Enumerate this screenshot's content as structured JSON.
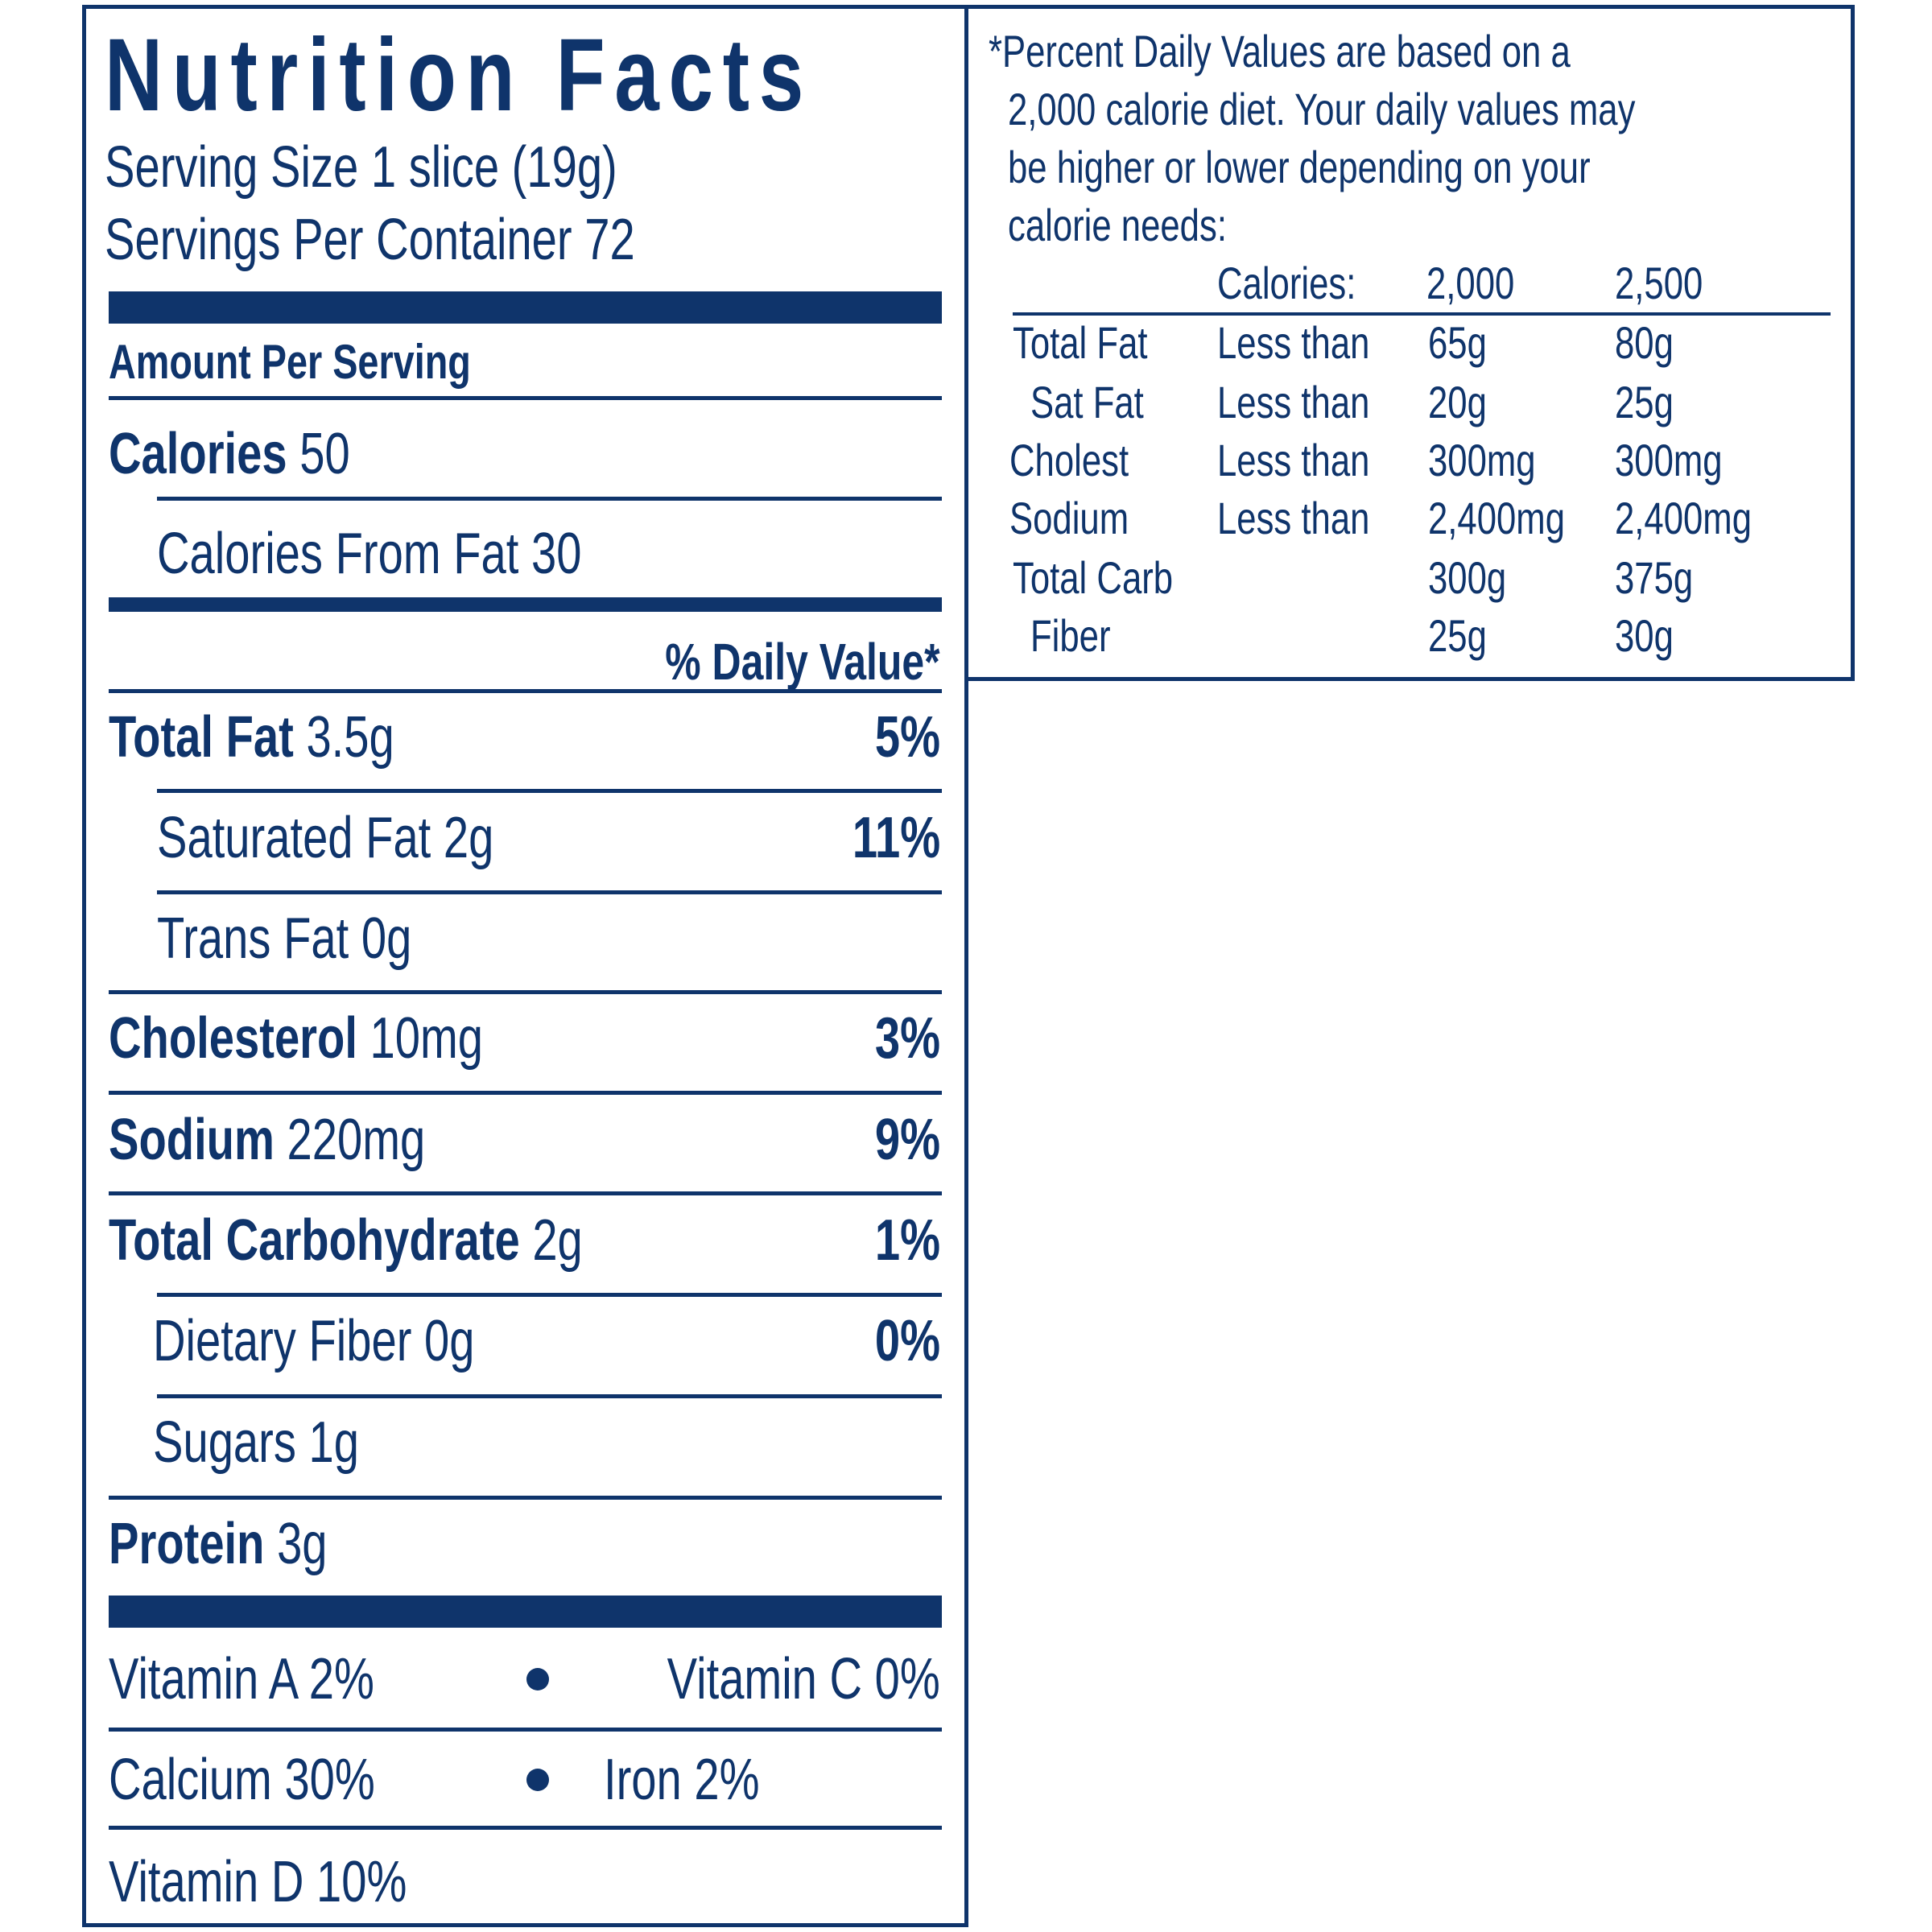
{
  "title": "Nutrition Facts",
  "serving_size": "Serving Size 1 slice (19g)",
  "servings_per_container": "Servings Per Container 72",
  "amount_per_serving": "Amount Per Serving",
  "calories": {
    "label": "Calories",
    "value": "50"
  },
  "calories_from_fat": "Calories From Fat 30",
  "daily_value_header": "% Daily Value*",
  "nutrients": [
    {
      "name": "Total Fat",
      "amount": "3.5g",
      "dv": "5%"
    },
    {
      "name": "Saturated Fat",
      "amount": "2g",
      "dv": "11%"
    },
    {
      "name": "Trans Fat",
      "amount": "0g",
      "dv": ""
    },
    {
      "name": "Cholesterol",
      "amount": "10mg",
      "dv": "3%"
    },
    {
      "name": "Sodium",
      "amount": "220mg",
      "dv": "9%"
    },
    {
      "name": "Total Carbohydrate",
      "amount": "2g",
      "dv": "1%"
    },
    {
      "name": "Dietary Fiber",
      "amount": "0g",
      "dv": "0%"
    },
    {
      "name": "Sugars",
      "amount": "1g",
      "dv": ""
    },
    {
      "name": "Protein",
      "amount": "3g",
      "dv": ""
    }
  ],
  "vitamins": {
    "vitamin_a": "Vitamin A 2%",
    "vitamin_c": "Vitamin C 0%",
    "calcium": "Calcium 30%",
    "iron": "Iron 2%",
    "vitamin_d": "Vitamin D 10%"
  },
  "footnote": {
    "lines": [
      "*Percent Daily Values are based on a",
      "2,000 calorie diet. Your daily values may",
      "be higher or lower depending on your",
      "calorie needs:"
    ],
    "header": [
      "Calories:",
      "2,000",
      "2,500"
    ],
    "rows": [
      {
        "nutrient": "Total Fat",
        "qualifier": "Less than",
        "v2000": "65g",
        "v2500": "80g"
      },
      {
        "nutrient": "Sat Fat",
        "qualifier": "Less than",
        "v2000": "20g",
        "v2500": "25g"
      },
      {
        "nutrient": "Cholest",
        "qualifier": "Less than",
        "v2000": "300mg",
        "v2500": "300mg"
      },
      {
        "nutrient": "Sodium",
        "qualifier": "Less than",
        "v2000": "2,400mg",
        "v2500": "2,400mg"
      },
      {
        "nutrient": "Total Carb",
        "qualifier": "",
        "v2000": "300g",
        "v2500": "375g"
      },
      {
        "nutrient": "Fiber",
        "qualifier": "",
        "v2000": "25g",
        "v2500": "30g"
      }
    ]
  },
  "colors": {
    "ink": "#0f346b",
    "background": "#ffffff"
  }
}
